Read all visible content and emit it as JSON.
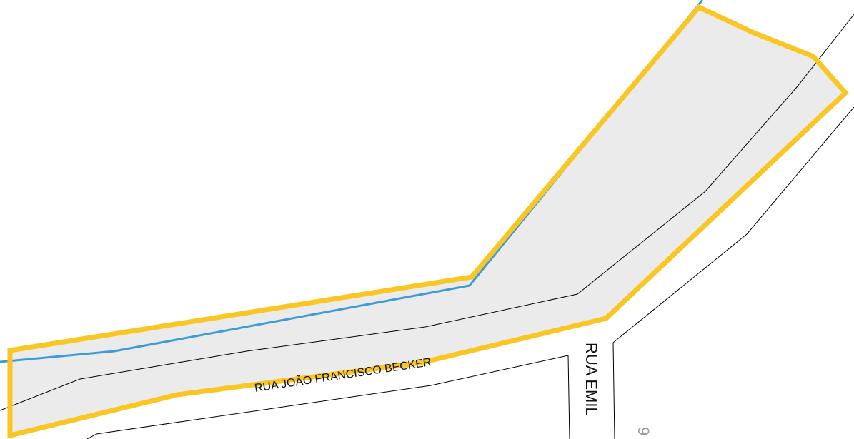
{
  "map": {
    "streets": [
      {
        "name": "RUA JOÃO FRANCISCO BECKER"
      },
      {
        "name": "RUA EMIL"
      }
    ],
    "lot_number": "9",
    "colors": {
      "background": "#ffffff",
      "area_fill": "#ebebeb",
      "area_outline": "#f9c623",
      "line_blue": "#3e9bd6",
      "line_black": "#000000",
      "lot_number": "#9a9a9a"
    }
  }
}
